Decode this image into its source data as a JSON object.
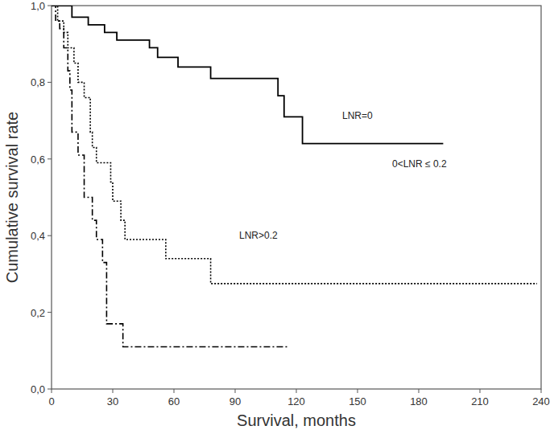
{
  "chart_data": {
    "type": "step",
    "x_label": "Survival, months",
    "y_label": "Cumulative survival rate",
    "xlim": [
      0,
      240
    ],
    "xticks": [
      0,
      30,
      60,
      90,
      120,
      150,
      180,
      210,
      240
    ],
    "ylim": [
      0,
      1
    ],
    "yticks": [
      {
        "value": 0,
        "label": "0,0"
      },
      {
        "value": 0.2,
        "label": "0,2"
      },
      {
        "value": 0.4,
        "label": "0,4"
      },
      {
        "value": 0.6,
        "label": "0,6"
      },
      {
        "value": 0.8,
        "label": "0,8"
      },
      {
        "value": 1,
        "label": "1,0"
      }
    ],
    "grid": false,
    "series": [
      {
        "name": "LNR=0",
        "color": "#000000",
        "line_style": "solid",
        "x": [
          0,
          10,
          18,
          26,
          32,
          48,
          52,
          62,
          78,
          111,
          114,
          123,
          192
        ],
        "values": [
          1.0,
          0.97,
          0.95,
          0.93,
          0.91,
          0.89,
          0.865,
          0.84,
          0.81,
          0.765,
          0.71,
          0.64,
          0.64
        ]
      },
      {
        "name": "0<LNR ≤ 0.2",
        "color": "#000000",
        "line_style": "dotted",
        "x": [
          0,
          3,
          6,
          8,
          11,
          13,
          16,
          19,
          20,
          22,
          29,
          30,
          34,
          36,
          56,
          78,
          238
        ],
        "values": [
          1.0,
          0.96,
          0.93,
          0.89,
          0.85,
          0.8,
          0.76,
          0.67,
          0.63,
          0.59,
          0.54,
          0.49,
          0.44,
          0.39,
          0.34,
          0.275,
          0.275
        ]
      },
      {
        "name": "LNR>0.2",
        "color": "#000000",
        "line_style": "dashdot",
        "x": [
          0,
          2,
          4,
          6,
          8,
          9,
          10,
          13,
          16,
          20,
          22,
          25,
          27,
          35,
          116
        ],
        "values": [
          1.0,
          0.96,
          0.94,
          0.89,
          0.83,
          0.78,
          0.67,
          0.61,
          0.5,
          0.44,
          0.39,
          0.33,
          0.17,
          0.11,
          0.11
        ]
      }
    ]
  }
}
